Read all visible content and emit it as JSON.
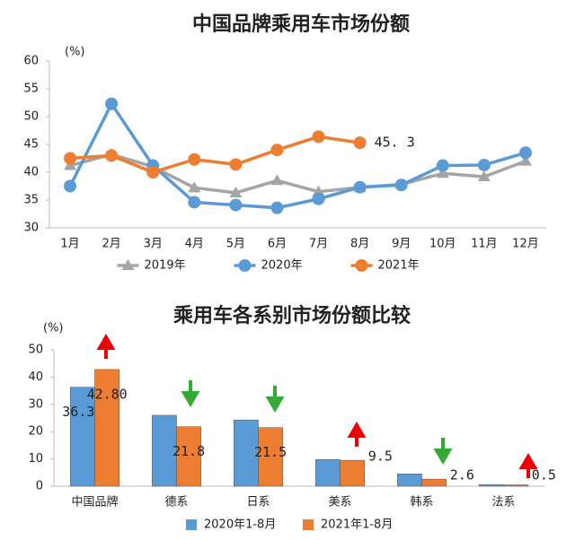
{
  "chart_data": [
    {
      "type": "line",
      "title": "中国品牌乘用车市场份额",
      "y_label": "(%)",
      "categories": [
        "1月",
        "2月",
        "3月",
        "4月",
        "5月",
        "6月",
        "7月",
        "8月",
        "9月",
        "10月",
        "11月",
        "12月"
      ],
      "series": [
        {
          "name": "2019年",
          "color": "#a5a5a5",
          "marker": "triangle",
          "values": [
            41.2,
            43.2,
            41.0,
            37.2,
            36.3,
            38.5,
            36.5,
            37.3,
            37.8,
            39.8,
            39.2,
            42.0
          ]
        },
        {
          "name": "2020年",
          "color": "#5b9bd5",
          "marker": "circle",
          "values": [
            37.5,
            52.3,
            41.2,
            34.6,
            34.1,
            33.6,
            35.2,
            37.3,
            37.7,
            41.2,
            41.3,
            43.5
          ]
        },
        {
          "name": "2021年",
          "color": "#ed7d31",
          "marker": "circle",
          "values": [
            42.5,
            43.0,
            40.0,
            42.3,
            41.4,
            44.0,
            46.4,
            45.3,
            null,
            null,
            null,
            null
          ],
          "value_labels": [
            null,
            null,
            null,
            null,
            null,
            null,
            null,
            "45. 3",
            null,
            null,
            null,
            null
          ]
        }
      ],
      "ylim": [
        30,
        60
      ],
      "yticks": [
        30,
        35,
        40,
        45,
        50,
        55,
        60
      ],
      "grid": false
    },
    {
      "type": "bar",
      "title": "乘用车各系别市场份额比较",
      "y_label": "(%)",
      "categories": [
        "中国品牌",
        "德系",
        "日系",
        "美系",
        "韩系",
        "法系"
      ],
      "series": [
        {
          "name": "2020年1-8月",
          "color": "#5b9bd5",
          "values": [
            36.3,
            26.0,
            24.3,
            9.8,
            4.5,
            0.6
          ],
          "value_labels": [
            "36.30",
            null,
            null,
            null,
            null,
            null
          ]
        },
        {
          "name": "2021年1-8月",
          "color": "#ed7d31",
          "values": [
            42.8,
            21.8,
            21.5,
            9.5,
            2.6,
            0.5
          ],
          "value_labels": [
            "42.80",
            "21.8",
            "21.5",
            "9.5",
            "2.6",
            "0.5"
          ]
        }
      ],
      "ylim": [
        0,
        50
      ],
      "yticks": [
        0,
        10,
        20,
        30,
        40,
        50
      ],
      "grid": false
    }
  ]
}
